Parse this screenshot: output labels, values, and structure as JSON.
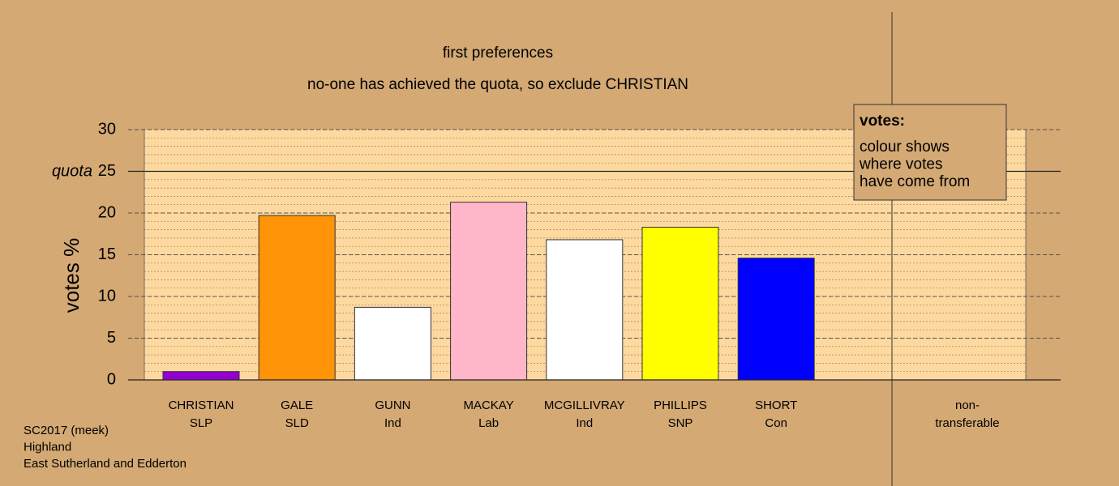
{
  "chart_data": {
    "type": "bar",
    "title": "first preferences",
    "subtitle": "no-one has achieved the quota, so exclude CHRISTIAN",
    "ylabel": "votes %",
    "categories": [
      "CHRISTIAN",
      "GALE",
      "GUNN",
      "MACKAY",
      "MCGILLIVRAY",
      "PHILLIPS",
      "SHORT",
      "non-transferable"
    ],
    "parties": [
      "SLP",
      "SLD",
      "Ind",
      "Lab",
      "Ind",
      "SNP",
      "Con",
      null
    ],
    "values": [
      1.0,
      19.7,
      8.7,
      21.3,
      16.8,
      18.3,
      14.6,
      0
    ],
    "colors": [
      "#9400d3",
      "#ff9408",
      "#ffffff",
      "#ffb6c8",
      "#ffffff",
      "#ffff00",
      "#0000ff",
      "#ffffff"
    ],
    "ylim": [
      0,
      30
    ],
    "yticks": [
      0,
      5,
      10,
      15,
      20,
      25,
      30
    ],
    "quota": {
      "value": 25,
      "label": "quota"
    },
    "minor_grid_step": 1,
    "grid": true,
    "legend": {
      "title": "votes:",
      "lines": [
        "colour shows",
        "where votes",
        "have come from"
      ]
    },
    "footer": [
      "SC2017 (meek)",
      "Highland",
      "East Sutherland and Edderton"
    ]
  }
}
